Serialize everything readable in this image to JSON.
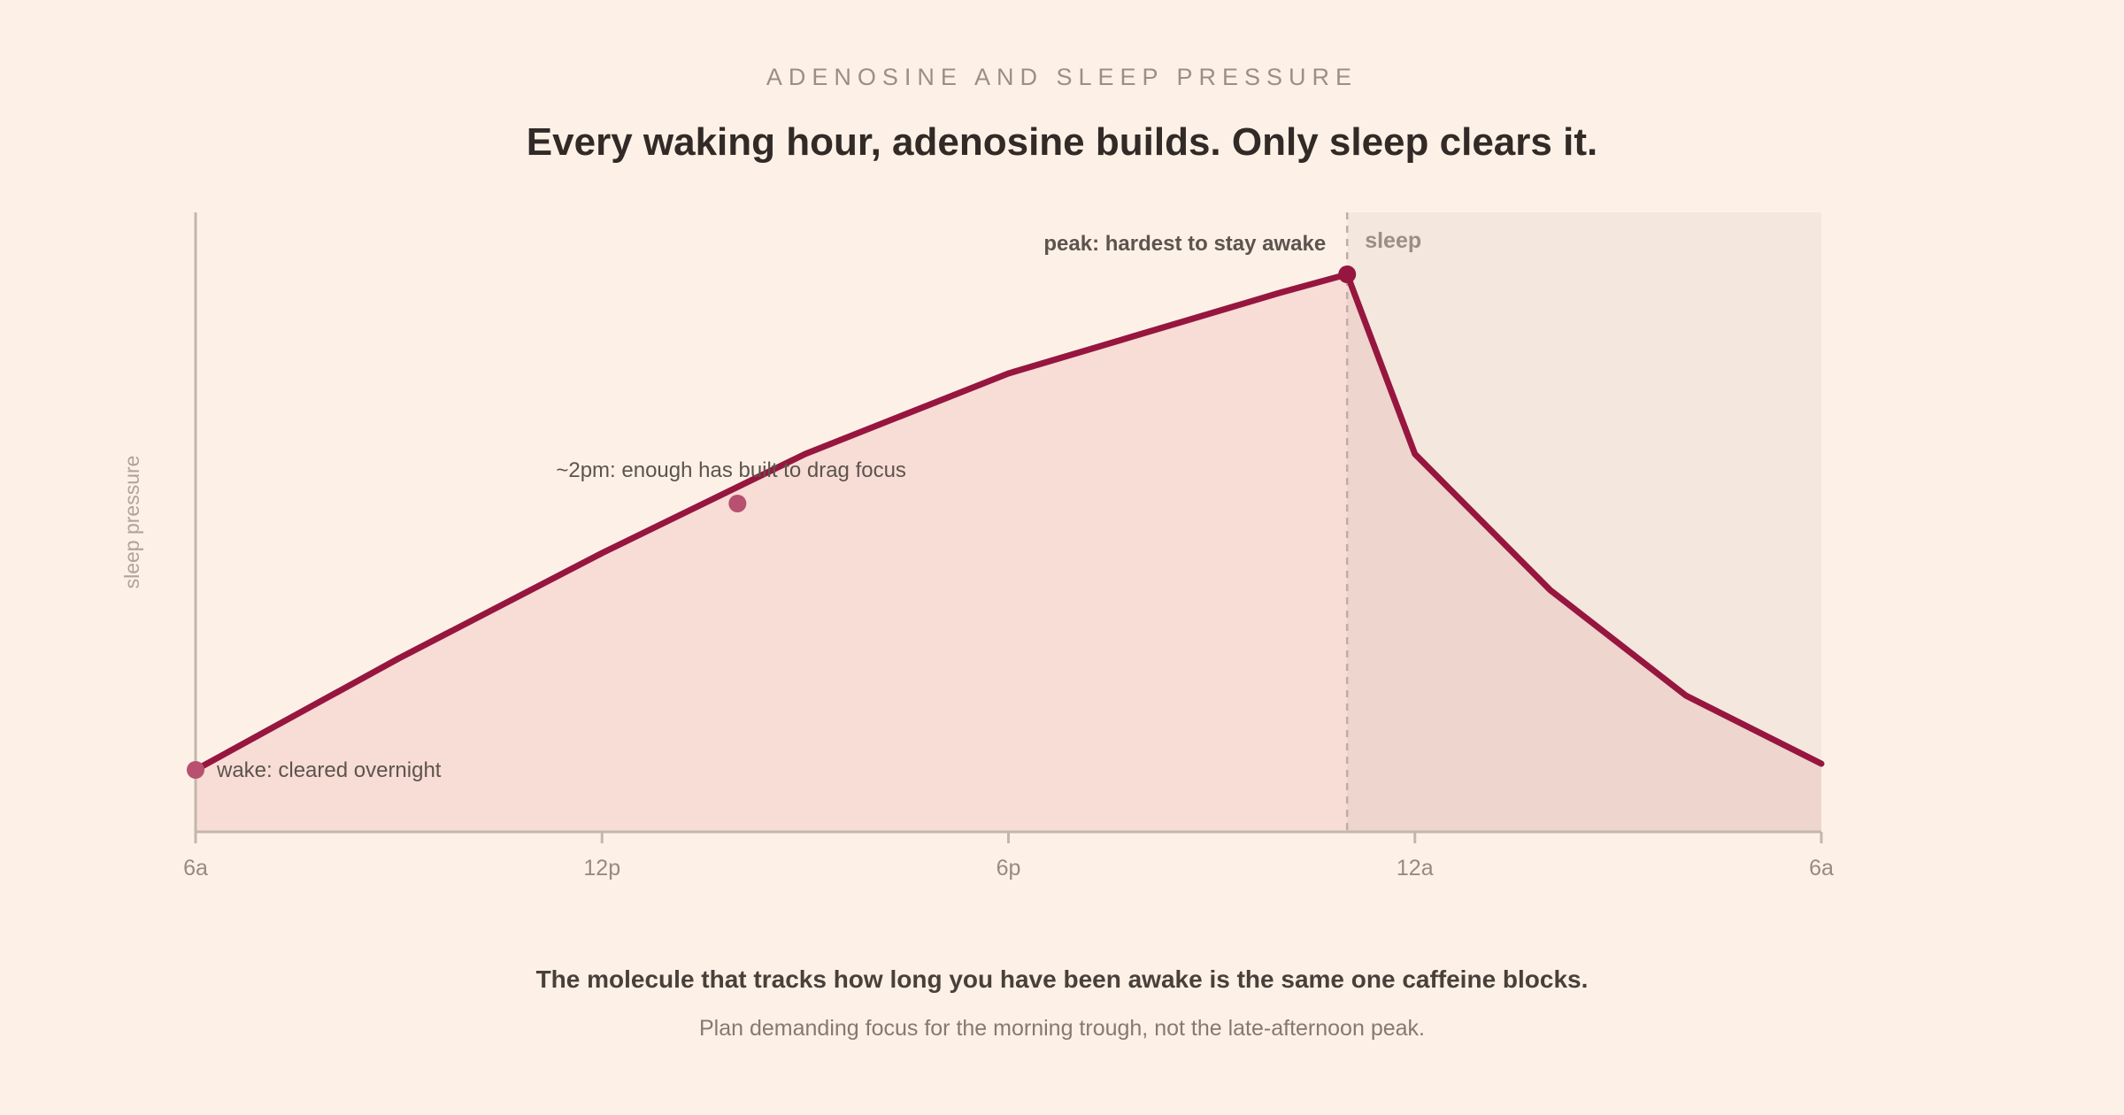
{
  "header": {
    "kicker": "ADENOSINE AND SLEEP PRESSURE",
    "title": "Every waking hour, adenosine builds. Only sleep clears it."
  },
  "footer": {
    "takeaway": "The molecule that tracks how long you have been awake is the same one caffeine blocks.",
    "subnote": "Plan demanding focus for the morning trough, not the late-afternoon peak."
  },
  "colors": {
    "line": "#96163f",
    "area": "#f7ddd6",
    "sleep_band": "#f4e7dd",
    "sleep_overlap": "#eed5ce",
    "axis": "#c4b6ac",
    "tick_text": "#968a81",
    "annotation_text": "#5e534d",
    "marker_light": "#b8506f"
  },
  "chart_data": {
    "type": "area",
    "ylabel": "sleep pressure",
    "x_ticks": [
      {
        "hour": 0,
        "label": "6a"
      },
      {
        "hour": 6,
        "label": "12p"
      },
      {
        "hour": 12,
        "label": "6p"
      },
      {
        "hour": 18,
        "label": "12a"
      },
      {
        "hour": 24,
        "label": "6a"
      }
    ],
    "xlim": [
      0,
      24
    ],
    "ylim": [
      0,
      100
    ],
    "series": [
      {
        "points": [
          [
            0,
            10
          ],
          [
            3,
            28
          ],
          [
            6,
            45
          ],
          [
            9,
            61
          ],
          [
            12,
            74
          ],
          [
            16,
            87
          ],
          [
            17,
            90
          ],
          [
            18,
            61
          ],
          [
            20,
            39
          ],
          [
            22,
            22
          ],
          [
            24,
            11
          ]
        ]
      }
    ],
    "sleep_region": {
      "start": 17,
      "end": 24,
      "label": "sleep"
    },
    "annotations": [
      {
        "id": "wake",
        "x": 0,
        "y": 10,
        "text": "wake: cleared overnight",
        "bold": false,
        "marker": "light"
      },
      {
        "id": "focus",
        "x": 8,
        "y": 53,
        "text": "~2pm: enough has built to drag focus",
        "bold": false,
        "marker": "light"
      },
      {
        "id": "peak",
        "x": 17,
        "y": 90,
        "text": "peak: hardest to stay awake",
        "bold": true,
        "marker": "dark"
      }
    ],
    "grid": false,
    "legend": "none"
  }
}
